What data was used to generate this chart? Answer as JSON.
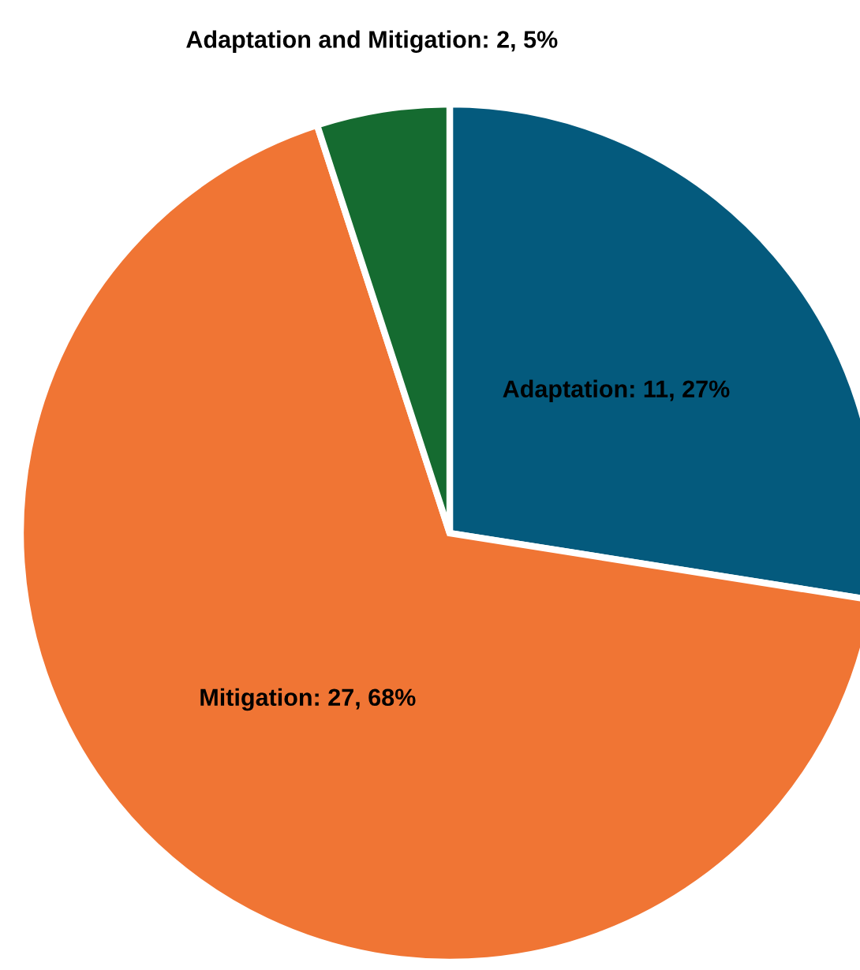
{
  "chart_data": {
    "type": "pie",
    "categories": [
      "Adaptation",
      "Mitigation",
      "Adaptation and Mitigation"
    ],
    "values": [
      11,
      27,
      2
    ],
    "value_labels": [
      "11, 27%",
      "27, 68%",
      "2, 5%"
    ],
    "colors": [
      "#045a7d",
      "#f07534",
      "#156b30"
    ],
    "legend": false
  }
}
